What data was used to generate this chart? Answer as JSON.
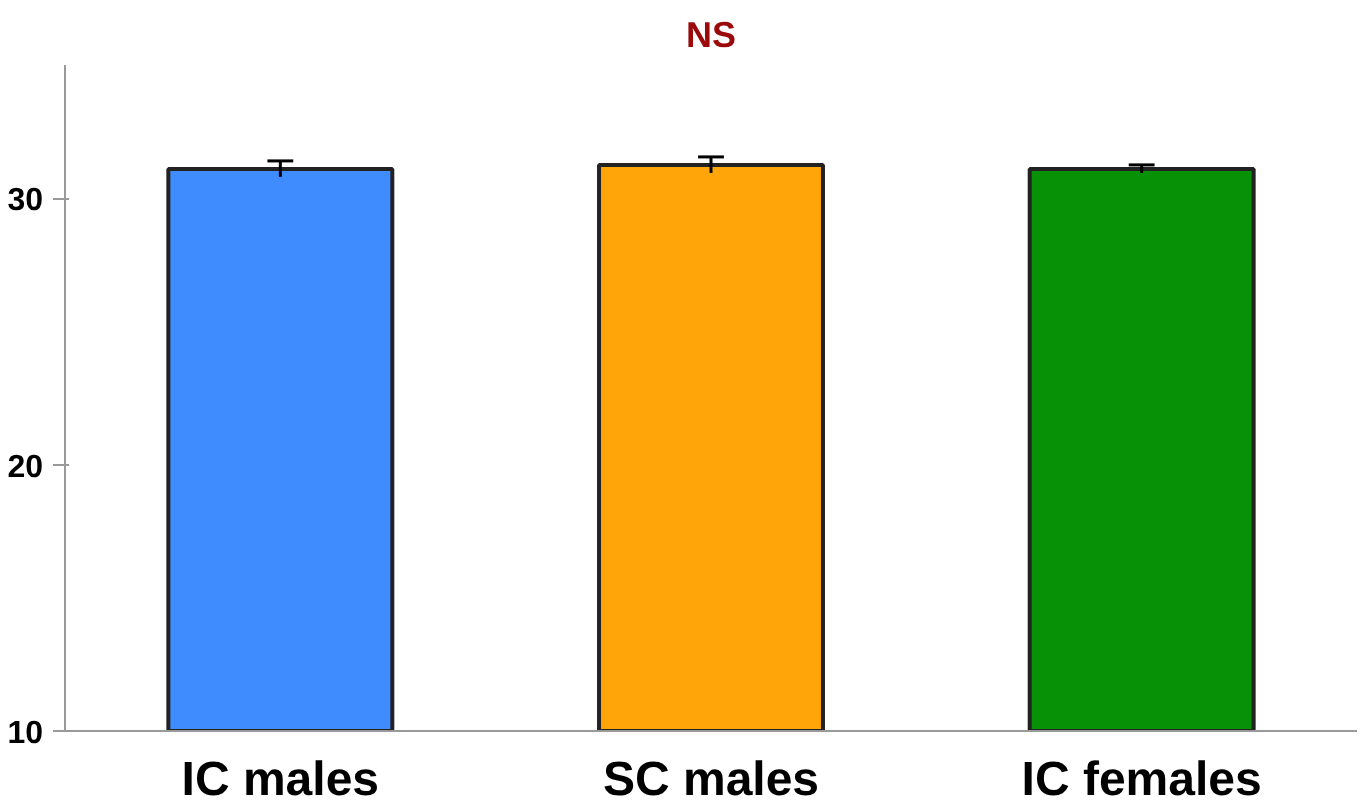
{
  "chart_data": {
    "type": "bar",
    "title": "NS",
    "categories": [
      "IC males",
      "SC males",
      "IC females"
    ],
    "values": [
      31.1,
      31.25,
      31.1
    ],
    "colors": [
      "#3f8cff",
      "#ffa50a",
      "#069106"
    ],
    "errors": [
      0.3,
      0.3,
      0.15
    ],
    "ylim": [
      10,
      35
    ],
    "yticks": [
      10,
      20,
      30
    ],
    "grid": false
  }
}
